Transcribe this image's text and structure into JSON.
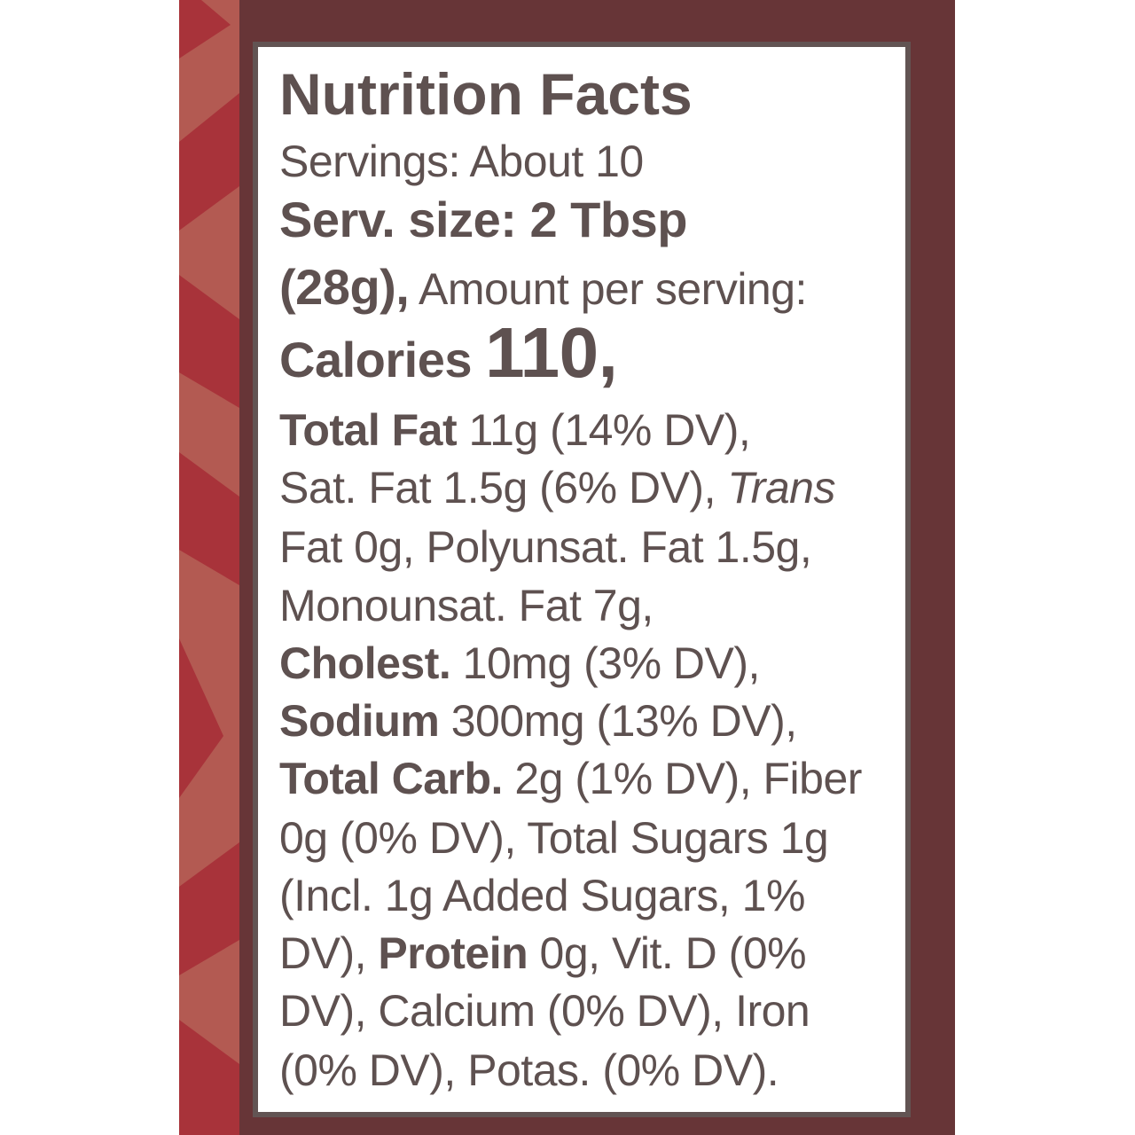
{
  "colors": {
    "strip": "#b35a52",
    "strip_accent": "#a8333a",
    "panel": "#673537",
    "frame": "#625453",
    "text": "#5e5150"
  },
  "label": {
    "title": "Nutrition Facts",
    "servings": "Servings: About 10",
    "serv_size": "Serv. size: 2 Tbsp",
    "serv_size_grams": "(28g),",
    "amount_per_serving": " Amount per serving:",
    "calories_label": "Calories ",
    "calories_value": "110,",
    "total_fat_label": "Total Fat",
    "total_fat_value": " 11g (14% DV),",
    "sat_fat": "Sat. Fat 1.5g (6% DV), ",
    "trans_label": "Trans",
    "trans_poly": "Fat 0g, Polyunsat. Fat 1.5g,",
    "mono": "Monounsat. Fat 7g,",
    "cholest_label": "Cholest.",
    "cholest_value": " 10mg (3% DV),",
    "sodium_label": "Sodium",
    "sodium_value": " 300mg (13% DV),",
    "carb_label": "Total Carb.",
    "carb_value": " 2g (1% DV), Fiber",
    "fiber_sugars": "0g (0% DV), Total Sugars 1g",
    "added_sugars": "(Incl. 1g Added Sugars, 1%",
    "added_sugars_end": "DV), ",
    "protein_label": "Protein",
    "protein_value": " 0g, Vit. D (0%",
    "calcium_iron": "DV), Calcium (0% DV), Iron",
    "potas": "(0% DV), Potas. (0% DV)."
  }
}
